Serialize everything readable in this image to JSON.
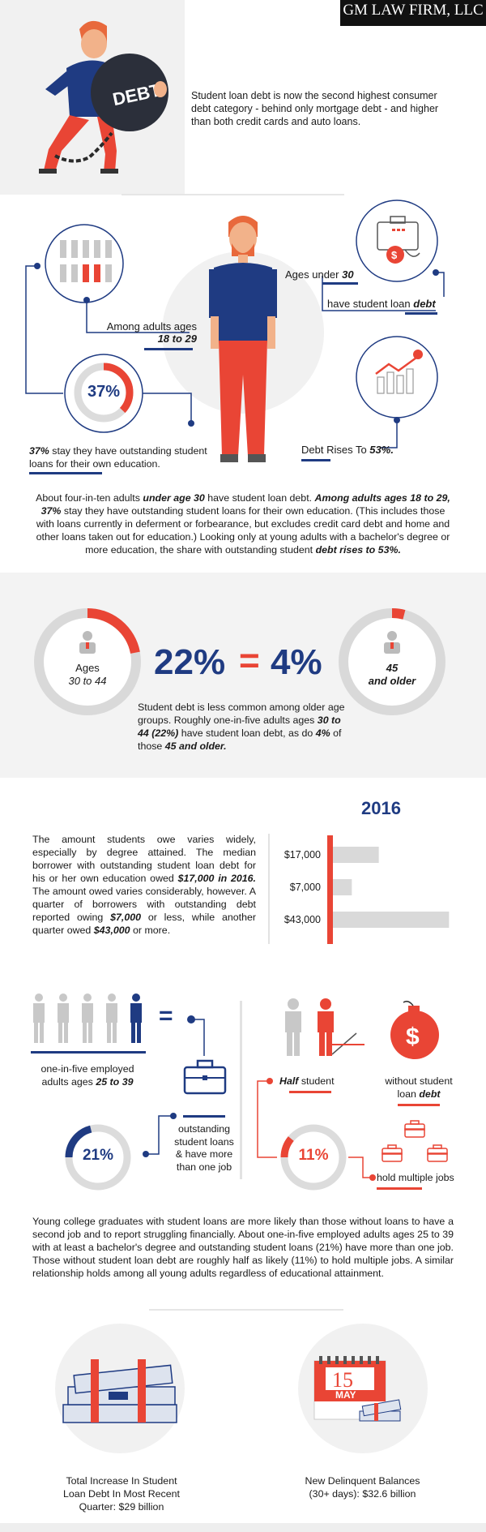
{
  "logo": {
    "name": "GM LAW FIRM, LLC"
  },
  "intro": {
    "text": "Student loan debt is now the second highest consumer debt category - behind only mortgage debt - and higher than both credit cards and auto loans.",
    "ball_label": "DEBT"
  },
  "section2": {
    "among_label": "Among adults ages",
    "among_value": "18 to 29",
    "pct_circle": "37%",
    "pct_caption_bold": "37%",
    "pct_caption": " stay they have outstanding student loans for their own education.",
    "ages_under_label": "Ages under ",
    "ages_under_value": "30",
    "have_loan_label": "have student loan ",
    "have_loan_value": "debt",
    "debt_rises_label": "Debt Rises To ",
    "debt_rises_value": "53%.",
    "dollar_sign": "$",
    "paragraph": {
      "p1": "About four-in-ten adults ",
      "b1": "under age 30",
      "p2": " have student loan debt. ",
      "b2": "Among adults ages 18 to 29, 37%",
      "p3": " stay they have outstanding student loans for their own education. (This includes those with loans currently in deferment or forbearance, but excludes credit card debt and home and other loans taken out for education.) Looking only at young adults with a bachelor's degree or more education, the share with outstanding student ",
      "b3": "debt rises to 53%."
    }
  },
  "section3": {
    "left_label1": "Ages",
    "left_label2": "30 to 44",
    "left_pct": 22,
    "right_label1": "45",
    "right_label2": "and older",
    "right_pct": 4,
    "big_left": "22%",
    "big_eq": "=",
    "big_right": "4%",
    "para": {
      "p1": "Student debt is less common among older age groups. Roughly one-in-five adults ages ",
      "b1": "30 to 44 (22%)",
      "p2": " have student loan debt, as do ",
      "b2": "4%",
      "p3": " of those ",
      "b3": "45 and older."
    }
  },
  "section4": {
    "year": "2016",
    "para": {
      "p1": "The amount students owe varies widely, especially by degree attained. The median borrower with outstanding student loan debt for his or her own education owed ",
      "b1": "$17,000 in 2016.",
      "p2": " The amount owed varies considerably, however. A quarter of borrowers with outstanding debt reported owing ",
      "b2": "$7,000",
      "p3": " or less, while another quarter owed ",
      "b3": "$43,000",
      "p4": " or more."
    },
    "chart_data": {
      "type": "bar",
      "categories": [
        "$17,000",
        "$7,000",
        "$43,000"
      ],
      "values": [
        17000,
        7000,
        43000
      ],
      "title": "2016"
    }
  },
  "section5": {
    "one_in_five_1": "one-in-five employed",
    "one_in_five_2": "adults ages ",
    "one_in_five_value": "25 to 39",
    "equals": "=",
    "pct21": "21%",
    "outstanding": [
      "outstanding",
      "student loans",
      "& have more",
      "than one job"
    ],
    "half_bold": "Half",
    "half_label": " student",
    "without_1": "without student",
    "without_2": "loan ",
    "without_value": "debt",
    "pct11": "11%",
    "hold_multiple": "hold multiple jobs",
    "dollar_sign": "$",
    "para": "Young college graduates with student loans are more likely than those without loans to have a second job and to report struggling financially. About one-in-five employed adults ages 25 to 39 with at least a bachelor's degree and outstanding student loans (21%) have more than one job. Those without student loan debt are roughly half as likely (11%) to hold multiple jobs. A similar relationship holds among all young adults regardless of educational attainment."
  },
  "section6": {
    "left_caption": [
      "Total Increase In Student",
      "Loan Debt In Most Recent",
      "Quarter: $29 billion"
    ],
    "right_caption": [
      "New Delinquent Balances",
      "(30+ days): $32.6 billion"
    ],
    "cal_day": "15",
    "cal_month": "MAY"
  },
  "colors": {
    "navy": "#1f3b82",
    "red": "#e94535",
    "grey": "#d9d9d9",
    "bg": "#f3f3f3"
  }
}
